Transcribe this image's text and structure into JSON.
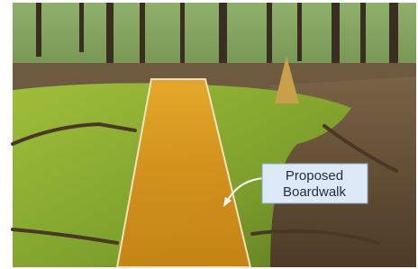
{
  "callout": {
    "lines": [
      "Proposed",
      "Boardwalk"
    ]
  }
}
